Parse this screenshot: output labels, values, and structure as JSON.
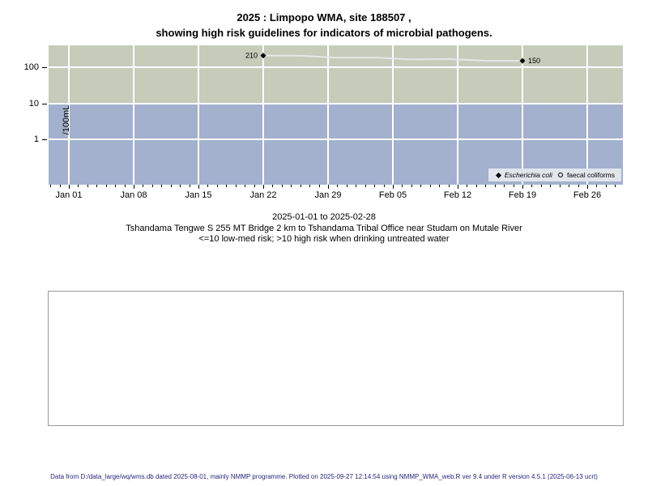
{
  "title": {
    "line1": "2025 : Limpopo WMA, site 188507 ,",
    "line2": "showing high risk guidelines for indicators of microbial pathogens."
  },
  "chart_data": {
    "type": "line",
    "title": "2025 : Limpopo WMA, site 188507, showing high risk guidelines for indicators of microbial pathogens.",
    "ylabel": "/100mL",
    "xlabel": "",
    "y_scale": "log",
    "ylim": [
      0.05,
      400
    ],
    "y_tick_values": [
      100,
      10,
      1
    ],
    "y_tick_labels": [
      "100",
      "10",
      "1"
    ],
    "x_range": [
      "2025-01-01",
      "2025-02-28"
    ],
    "x_tick_labels": [
      "Jan 01",
      "Jan 08",
      "Jan 15",
      "Jan 22",
      "Jan 29",
      "Feb 05",
      "Feb 12",
      "Feb 19",
      "Feb 26"
    ],
    "risk_bands": {
      "threshold": 10,
      "high_risk_color": "#c5ccba",
      "low_risk_color": "#a3b1ce",
      "note": "green band >10 high risk, blue band <=10 low-med risk"
    },
    "grid": "white major gridlines on",
    "legend_position": "bottom-right",
    "series": [
      {
        "name": "Escherichia coli",
        "marker": "filled-diamond",
        "color": "#000000",
        "line_color": "#e6e6e6",
        "points": [
          {
            "date": "2025-01-22",
            "value": 210,
            "label": "210",
            "label_side": "left"
          },
          {
            "date": "2025-02-19",
            "value": 150,
            "label": "150",
            "label_side": "right"
          }
        ]
      },
      {
        "name": "faecal coliforms",
        "marker": "open-circle",
        "color": "#000000",
        "points": []
      }
    ]
  },
  "legend": {
    "ecoli_label": "Escherichia coli",
    "faecal_label": "faecal coliforms"
  },
  "captions": {
    "line1": "2025-01-01 to 2025-02-28",
    "line2": "Tshandama Tengwe S 255 MT Bridge 2 km to Tshandama Tribal Office near Studam on Mutale River",
    "line3": "<=10 low-med risk; >10 high risk when drinking untreated water"
  },
  "footer": {
    "text": "Data from D:/data_large/wq/wms.db dated 2025-08-01, mainly NMMP programme. Plotted on 2025-09-27 12:14:54 using NMMP_WMA_web.R ver 9.4 under R version 4.5.1 (2025-06-13 ucrt)"
  }
}
